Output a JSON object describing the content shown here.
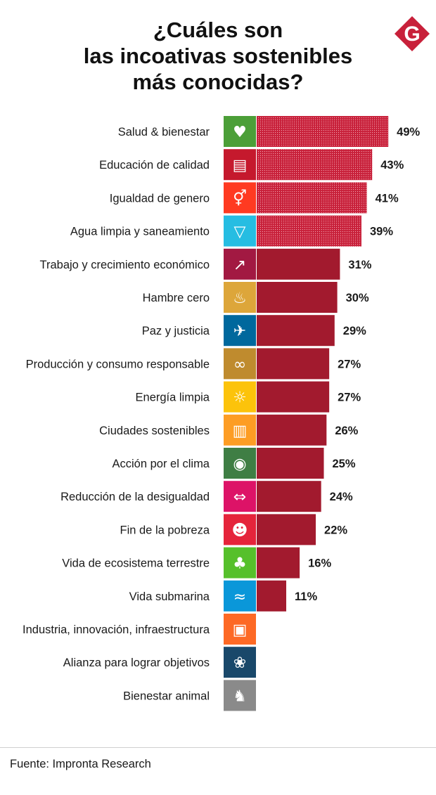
{
  "title_lines": [
    "¿Cuáles son",
    "las incoativas sostenibles",
    "más conocidas?"
  ],
  "logo_letter": "G",
  "source": "Fuente: Impronta Research",
  "colors": {
    "bar": "#a21a2e",
    "bar_highlight": "#c8203a",
    "logo": "#c8203a"
  },
  "chart_data": {
    "type": "bar",
    "orientation": "horizontal",
    "title": "¿Cuáles son las incoativas sostenibles más conocidas?",
    "value_suffix": "%",
    "highlight_top": 4,
    "categories": [
      "Salud & bienestar",
      "Educación de calidad",
      "Igualdad de genero",
      "Agua limpia y saneamiento",
      "Trabajo y crecimiento económico",
      "Hambre cero",
      "Paz y justicia",
      "Producción y consumo responsable",
      "Energía limpia",
      "Ciudades sostenibles",
      "Acción por el clima",
      "Reducción de la desigualdad",
      "Fin de la pobreza",
      "Vida de ecosistema terrestre",
      "Vida submarina",
      "Industria, innovación, infraestructura",
      "Alianza para lograr objetivos",
      "Bienestar animal"
    ],
    "values": [
      49,
      43,
      41,
      39,
      31,
      30,
      29,
      27,
      27,
      26,
      25,
      24,
      22,
      16,
      11,
      null,
      null,
      null
    ],
    "value_labels": [
      "49%",
      "43%",
      "41%",
      "39%",
      "31%",
      "30%",
      "29%",
      "27%",
      "27%",
      "26%",
      "25%",
      "24%",
      "22%",
      "16%",
      "11%",
      "",
      "",
      ""
    ],
    "icons": [
      {
        "name": "health-icon",
        "color": "#4c9f38",
        "glyph": "♥"
      },
      {
        "name": "book-icon",
        "color": "#c5192d",
        "glyph": "▤"
      },
      {
        "name": "gender-icon",
        "color": "#ff3a21",
        "glyph": "⚥"
      },
      {
        "name": "water-drop-icon",
        "color": "#26bde2",
        "glyph": "▽"
      },
      {
        "name": "growth-chart-icon",
        "color": "#a21942",
        "glyph": "↗"
      },
      {
        "name": "bowl-icon",
        "color": "#dda63a",
        "glyph": "♨"
      },
      {
        "name": "dove-icon",
        "color": "#00689d",
        "glyph": "✈"
      },
      {
        "name": "infinity-icon",
        "color": "#bf8b2e",
        "glyph": "∞"
      },
      {
        "name": "sun-icon",
        "color": "#fcc30b",
        "glyph": "☼"
      },
      {
        "name": "city-icon",
        "color": "#fd9d24",
        "glyph": "▥"
      },
      {
        "name": "eye-globe-icon",
        "color": "#3f7e44",
        "glyph": "◉"
      },
      {
        "name": "equality-icon",
        "color": "#dd1367",
        "glyph": "⇔"
      },
      {
        "name": "family-icon",
        "color": "#e5243b",
        "glyph": "☻"
      },
      {
        "name": "tree-icon",
        "color": "#56c02b",
        "glyph": "♣"
      },
      {
        "name": "fish-icon",
        "color": "#0a97d9",
        "glyph": "≈"
      },
      {
        "name": "cubes-icon",
        "color": "#fd6925",
        "glyph": "▣"
      },
      {
        "name": "rings-icon",
        "color": "#19486a",
        "glyph": "❀"
      },
      {
        "name": "animal-icon",
        "color": "#8a8a8a",
        "glyph": "♞"
      }
    ],
    "xlim": [
      0,
      50
    ]
  }
}
